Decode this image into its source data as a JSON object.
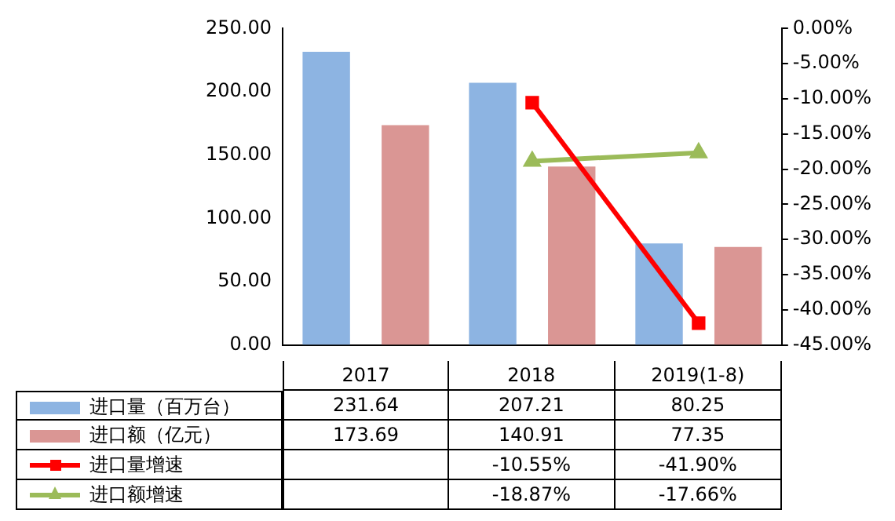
{
  "chart_data": {
    "type": "bar",
    "categories": [
      "2017",
      "2018",
      "2019(1-8)"
    ],
    "series": [
      {
        "name": "进口量（百万台）",
        "color": "#8db4e2",
        "values": [
          231.64,
          207.21,
          80.25
        ],
        "value_labels": [
          "231.64",
          "207.21",
          "80.25"
        ]
      },
      {
        "name": "进口额（亿元）",
        "color": "#da9694",
        "values": [
          173.69,
          140.91,
          77.35
        ],
        "value_labels": [
          "173.69",
          "140.91",
          "77.35"
        ]
      },
      {
        "name": "进口量增速",
        "type": "line",
        "axis": "y2",
        "color": "#ff0000",
        "marker": "square",
        "values": [
          null,
          -10.55,
          -41.9
        ],
        "value_labels": [
          null,
          "-10.55%",
          "-41.90%"
        ]
      },
      {
        "name": "进口额增速",
        "type": "line",
        "axis": "y2",
        "color": "#9bbb59",
        "marker": "triangle",
        "values": [
          null,
          -18.87,
          -17.66
        ],
        "value_labels": [
          null,
          "-18.87%",
          "-17.66%"
        ]
      }
    ],
    "ylim": [
      0,
      250
    ],
    "yticks": [
      {
        "value": 0,
        "label": "0.00"
      },
      {
        "value": 50,
        "label": "50.00"
      },
      {
        "value": 100,
        "label": "100.00"
      },
      {
        "value": 150,
        "label": "150.00"
      },
      {
        "value": 200,
        "label": "200.00"
      },
      {
        "value": 250,
        "label": "250.00"
      }
    ],
    "y2lim": [
      -45,
      0
    ],
    "y2ticks": [
      {
        "value": -45,
        "label": "-45.00%"
      },
      {
        "value": -40,
        "label": "-40.00%"
      },
      {
        "value": -35,
        "label": "-35.00%"
      },
      {
        "value": -30,
        "label": "-30.00%"
      },
      {
        "value": -25,
        "label": "-25.00%"
      },
      {
        "value": -20,
        "label": "-20.00%"
      },
      {
        "value": -15,
        "label": "-15.00%"
      },
      {
        "value": -10,
        "label": "-10.00%"
      },
      {
        "value": -5,
        "label": "-5.00%"
      },
      {
        "value": 0,
        "label": "0.00%"
      }
    ],
    "legend": "bottom",
    "grid": false
  }
}
